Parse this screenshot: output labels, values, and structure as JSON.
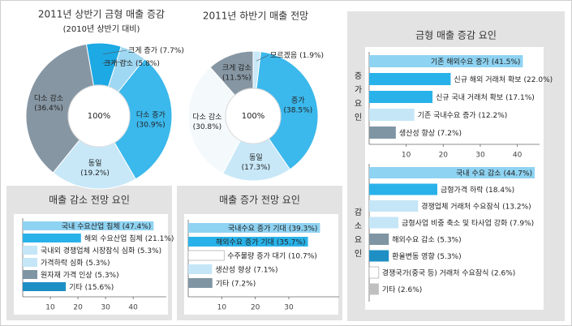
{
  "chart_data": [
    {
      "type": "donut",
      "title": "2011년 상반기 금형 매출 증감",
      "subtitle": "(2010년 상반기 대비)",
      "center_label": "100%",
      "categories": [
        "크게 증가",
        "크게 감소",
        "다소 증가",
        "동일",
        "다소 감소"
      ],
      "values": [
        7.7,
        5.8,
        30.9,
        19.2,
        36.4
      ],
      "value_labels": [
        "(7.7%)",
        "(5.8%)",
        "(30.9%)",
        "(19.2%)",
        "(36.4%)"
      ],
      "colors": [
        "#1ca9e4",
        "#9fd8f3",
        "#3bb8ec",
        "#c8e8f8",
        "#8696a3"
      ]
    },
    {
      "type": "donut",
      "title": "2011년 하반기 매출 전망",
      "center_label": "100%",
      "categories": [
        "모르겠음",
        "증가",
        "동일",
        "다소 감소",
        "크게 감소"
      ],
      "values": [
        1.9,
        38.5,
        17.3,
        30.8,
        11.5
      ],
      "value_labels": [
        "(1.9%)",
        "(38.5%)",
        "(17.3%)",
        "(30.8%)",
        "(11.5%)"
      ],
      "colors": [
        "#c8e8f8",
        "#3bb8ec",
        "#c8e8f8",
        "#f4f9fc",
        "#8696a3"
      ]
    },
    {
      "type": "hbar",
      "title": "매출 감소 전망 요인",
      "categories": [
        "국내 수요산업 침체",
        "해외 수요산업 침체",
        "국내외 경쟁업체 시장잠식 심화",
        "가격하락 심화",
        "원자재 가격 인상",
        "기타"
      ],
      "values": [
        47.4,
        21.1,
        5.3,
        5.3,
        5.3,
        15.6
      ],
      "value_labels": [
        "(47.4%)",
        "(21.1%)",
        "(5.3%)",
        "(5.3%)",
        "(5.3%)",
        "(15.6%)"
      ],
      "colors": [
        "#8fd3f2",
        "#29b2e9",
        "#c4e6f7",
        "#c4e6f7",
        "#7f95a3",
        "#1e8fc4"
      ],
      "xlim": [
        0,
        52
      ],
      "xticks": [
        10,
        20,
        30,
        40
      ]
    },
    {
      "type": "hbar",
      "title": "매출 증가 전망 요인",
      "categories": [
        "국내수요 증가 기대",
        "해외수요 증가 기대",
        "수주물량 증가 대기",
        "생산성 향상",
        "기타"
      ],
      "values": [
        39.3,
        35.7,
        10.7,
        7.1,
        7.2
      ],
      "value_labels": [
        "(39.3%)",
        "(35.7%)",
        "(10.7%)",
        "(7.1%)",
        "(7.2%)"
      ],
      "colors": [
        "#8fd3f2",
        "#29b2e9",
        "#ffffff",
        "#c4e6f7",
        "#7f95a3"
      ],
      "xlim": [
        0,
        45
      ],
      "xticks": [
        10,
        20,
        30
      ]
    },
    {
      "type": "hbar",
      "title": "금형 매출 증감 요인",
      "group_label": "증가요인",
      "categories": [
        "기존 해외수요 증가",
        "신규 해외 거래처 확보",
        "신규 국내 거래처 확보",
        "기존 국내수요 증가",
        "생산성 향상"
      ],
      "values": [
        41.5,
        22.0,
        17.1,
        12.2,
        7.2
      ],
      "value_labels": [
        "(41.5%)",
        "(22.0%)",
        "(17.1%)",
        "(12.2%)",
        "(7.2%)"
      ],
      "colors": [
        "#8fd3f2",
        "#29b2e9",
        "#29b2e9",
        "#c4e6f7",
        "#7f95a3"
      ],
      "xlim": [
        0,
        46
      ],
      "xticks": [
        10,
        20,
        30,
        40
      ]
    },
    {
      "type": "hbar",
      "group_label": "감소요인",
      "categories": [
        "국내 수요 감소",
        "금형가격 하락",
        "경쟁업체 거래처 수요잠식",
        "금형사업 비중 축소 및 타사업 강화",
        "해외수요 감소",
        "환율변동 영향",
        "경쟁국가(중국 등) 거래처 수요잠식",
        "기타"
      ],
      "values": [
        44.7,
        18.4,
        13.2,
        7.9,
        5.3,
        5.3,
        2.6,
        2.6
      ],
      "value_labels": [
        "(44.7%)",
        "(18.4%)",
        "(13.2%)",
        "(7.9%)",
        "(5.3%)",
        "(5.3%)",
        "(2.6%)",
        "(2.6%)"
      ],
      "colors": [
        "#8fd3f2",
        "#29b2e9",
        "#c4e6f7",
        "#c4e6f7",
        "#7f95a3",
        "#1e8fc4",
        "#ffffff",
        "#c0c0c0"
      ],
      "xlim": [
        0,
        46
      ]
    }
  ]
}
